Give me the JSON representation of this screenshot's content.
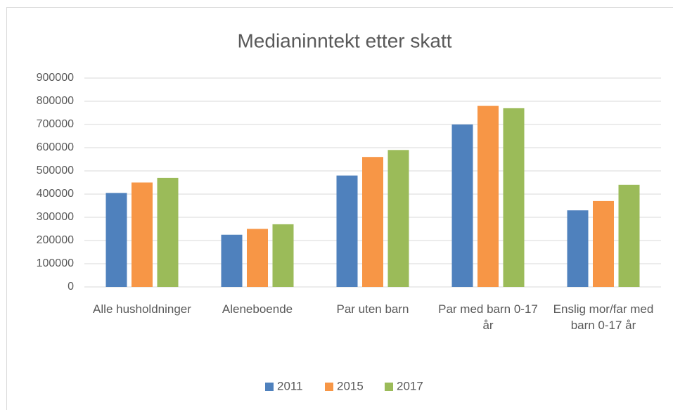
{
  "chart_data": {
    "type": "bar",
    "title": "Medianinntekt etter skatt",
    "categories": [
      "Alle husholdninger",
      "Aleneboende",
      "Par uten barn",
      "Par med barn 0-17 år",
      "Enslig mor/far med barn 0-17 år"
    ],
    "series": [
      {
        "name": "2011",
        "color": "#4f81bd",
        "values": [
          405000,
          225000,
          480000,
          700000,
          330000
        ]
      },
      {
        "name": "2015",
        "color": "#f79646",
        "values": [
          450000,
          250000,
          560000,
          780000,
          370000
        ]
      },
      {
        "name": "2017",
        "color": "#9bbb59",
        "values": [
          470000,
          270000,
          590000,
          770000,
          440000
        ]
      }
    ],
    "ylim": [
      0,
      900000
    ],
    "yticks": [
      0,
      100000,
      200000,
      300000,
      400000,
      500000,
      600000,
      700000,
      800000,
      900000
    ],
    "grid": true,
    "legend": "bottom"
  }
}
